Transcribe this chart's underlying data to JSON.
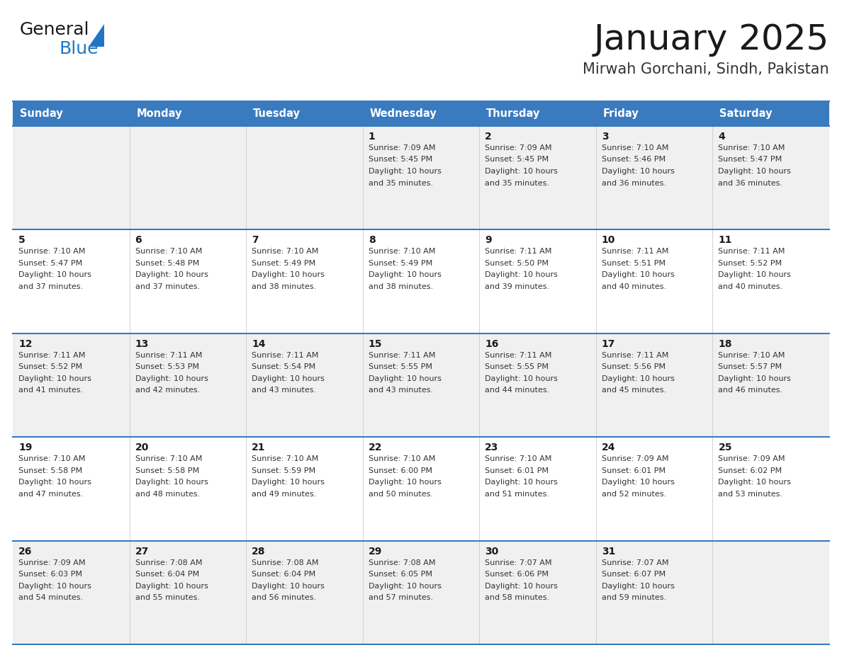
{
  "title": "January 2025",
  "subtitle": "Mirwah Gorchani, Sindh, Pakistan",
  "header_bg": "#3a7abf",
  "header_text": "#ffffff",
  "row_bg_odd": "#f0f0f0",
  "row_bg_even": "#ffffff",
  "day_names": [
    "Sunday",
    "Monday",
    "Tuesday",
    "Wednesday",
    "Thursday",
    "Friday",
    "Saturday"
  ],
  "days": [
    {
      "day": 1,
      "col": 3,
      "row": 0,
      "sunrise": "7:09 AM",
      "sunset": "5:45 PM",
      "daylight": "10 hours and 35 minutes."
    },
    {
      "day": 2,
      "col": 4,
      "row": 0,
      "sunrise": "7:09 AM",
      "sunset": "5:45 PM",
      "daylight": "10 hours and 35 minutes."
    },
    {
      "day": 3,
      "col": 5,
      "row": 0,
      "sunrise": "7:10 AM",
      "sunset": "5:46 PM",
      "daylight": "10 hours and 36 minutes."
    },
    {
      "day": 4,
      "col": 6,
      "row": 0,
      "sunrise": "7:10 AM",
      "sunset": "5:47 PM",
      "daylight": "10 hours and 36 minutes."
    },
    {
      "day": 5,
      "col": 0,
      "row": 1,
      "sunrise": "7:10 AM",
      "sunset": "5:47 PM",
      "daylight": "10 hours and 37 minutes."
    },
    {
      "day": 6,
      "col": 1,
      "row": 1,
      "sunrise": "7:10 AM",
      "sunset": "5:48 PM",
      "daylight": "10 hours and 37 minutes."
    },
    {
      "day": 7,
      "col": 2,
      "row": 1,
      "sunrise": "7:10 AM",
      "sunset": "5:49 PM",
      "daylight": "10 hours and 38 minutes."
    },
    {
      "day": 8,
      "col": 3,
      "row": 1,
      "sunrise": "7:10 AM",
      "sunset": "5:49 PM",
      "daylight": "10 hours and 38 minutes."
    },
    {
      "day": 9,
      "col": 4,
      "row": 1,
      "sunrise": "7:11 AM",
      "sunset": "5:50 PM",
      "daylight": "10 hours and 39 minutes."
    },
    {
      "day": 10,
      "col": 5,
      "row": 1,
      "sunrise": "7:11 AM",
      "sunset": "5:51 PM",
      "daylight": "10 hours and 40 minutes."
    },
    {
      "day": 11,
      "col": 6,
      "row": 1,
      "sunrise": "7:11 AM",
      "sunset": "5:52 PM",
      "daylight": "10 hours and 40 minutes."
    },
    {
      "day": 12,
      "col": 0,
      "row": 2,
      "sunrise": "7:11 AM",
      "sunset": "5:52 PM",
      "daylight": "10 hours and 41 minutes."
    },
    {
      "day": 13,
      "col": 1,
      "row": 2,
      "sunrise": "7:11 AM",
      "sunset": "5:53 PM",
      "daylight": "10 hours and 42 minutes."
    },
    {
      "day": 14,
      "col": 2,
      "row": 2,
      "sunrise": "7:11 AM",
      "sunset": "5:54 PM",
      "daylight": "10 hours and 43 minutes."
    },
    {
      "day": 15,
      "col": 3,
      "row": 2,
      "sunrise": "7:11 AM",
      "sunset": "5:55 PM",
      "daylight": "10 hours and 43 minutes."
    },
    {
      "day": 16,
      "col": 4,
      "row": 2,
      "sunrise": "7:11 AM",
      "sunset": "5:55 PM",
      "daylight": "10 hours and 44 minutes."
    },
    {
      "day": 17,
      "col": 5,
      "row": 2,
      "sunrise": "7:11 AM",
      "sunset": "5:56 PM",
      "daylight": "10 hours and 45 minutes."
    },
    {
      "day": 18,
      "col": 6,
      "row": 2,
      "sunrise": "7:10 AM",
      "sunset": "5:57 PM",
      "daylight": "10 hours and 46 minutes."
    },
    {
      "day": 19,
      "col": 0,
      "row": 3,
      "sunrise": "7:10 AM",
      "sunset": "5:58 PM",
      "daylight": "10 hours and 47 minutes."
    },
    {
      "day": 20,
      "col": 1,
      "row": 3,
      "sunrise": "7:10 AM",
      "sunset": "5:58 PM",
      "daylight": "10 hours and 48 minutes."
    },
    {
      "day": 21,
      "col": 2,
      "row": 3,
      "sunrise": "7:10 AM",
      "sunset": "5:59 PM",
      "daylight": "10 hours and 49 minutes."
    },
    {
      "day": 22,
      "col": 3,
      "row": 3,
      "sunrise": "7:10 AM",
      "sunset": "6:00 PM",
      "daylight": "10 hours and 50 minutes."
    },
    {
      "day": 23,
      "col": 4,
      "row": 3,
      "sunrise": "7:10 AM",
      "sunset": "6:01 PM",
      "daylight": "10 hours and 51 minutes."
    },
    {
      "day": 24,
      "col": 5,
      "row": 3,
      "sunrise": "7:09 AM",
      "sunset": "6:01 PM",
      "daylight": "10 hours and 52 minutes."
    },
    {
      "day": 25,
      "col": 6,
      "row": 3,
      "sunrise": "7:09 AM",
      "sunset": "6:02 PM",
      "daylight": "10 hours and 53 minutes."
    },
    {
      "day": 26,
      "col": 0,
      "row": 4,
      "sunrise": "7:09 AM",
      "sunset": "6:03 PM",
      "daylight": "10 hours and 54 minutes."
    },
    {
      "day": 27,
      "col": 1,
      "row": 4,
      "sunrise": "7:08 AM",
      "sunset": "6:04 PM",
      "daylight": "10 hours and 55 minutes."
    },
    {
      "day": 28,
      "col": 2,
      "row": 4,
      "sunrise": "7:08 AM",
      "sunset": "6:04 PM",
      "daylight": "10 hours and 56 minutes."
    },
    {
      "day": 29,
      "col": 3,
      "row": 4,
      "sunrise": "7:08 AM",
      "sunset": "6:05 PM",
      "daylight": "10 hours and 57 minutes."
    },
    {
      "day": 30,
      "col": 4,
      "row": 4,
      "sunrise": "7:07 AM",
      "sunset": "6:06 PM",
      "daylight": "10 hours and 58 minutes."
    },
    {
      "day": 31,
      "col": 5,
      "row": 4,
      "sunrise": "7:07 AM",
      "sunset": "6:07 PM",
      "daylight": "10 hours and 59 minutes."
    }
  ],
  "num_rows": 5,
  "num_cols": 7,
  "logo_general_color": "#1a1a1a",
  "logo_blue_color": "#2176c4",
  "title_color": "#1a1a1a",
  "subtitle_color": "#333333",
  "day_num_color": "#1a1a1a",
  "cell_text_color": "#333333",
  "border_color": "#3a7abf",
  "divider_color": "#cccccc"
}
